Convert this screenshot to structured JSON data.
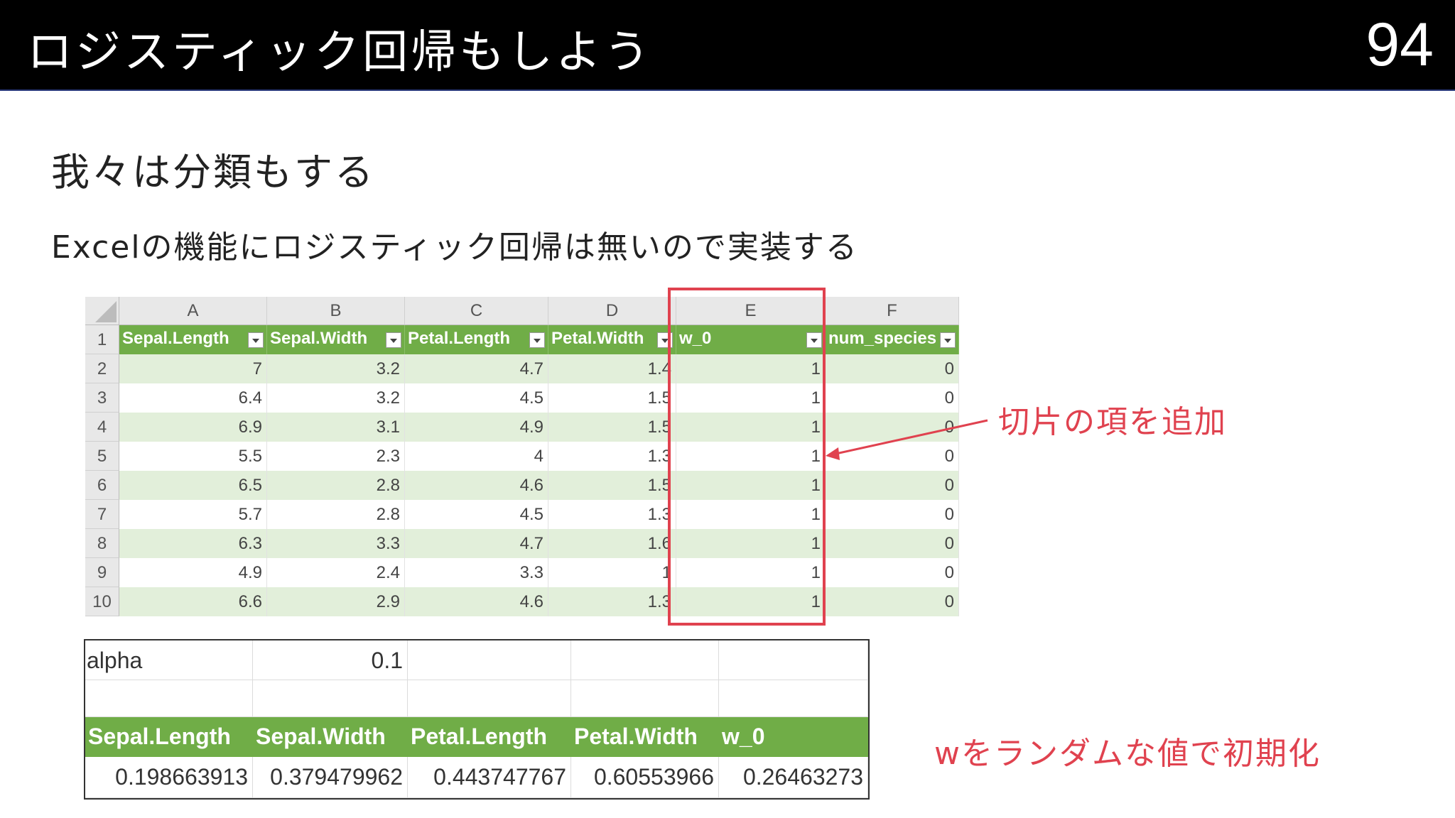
{
  "header": {
    "title": "ロジスティック回帰もしよう",
    "page_number": "94"
  },
  "subtitle": "我々は分類もする",
  "lead": "Excelの機能にロジスティック回帰は無いので実装する",
  "sheet": {
    "col_letters": [
      "A",
      "B",
      "C",
      "D",
      "E",
      "F"
    ],
    "row_numbers": [
      "1",
      "2",
      "3",
      "4",
      "5",
      "6",
      "7",
      "8",
      "9",
      "10"
    ],
    "headers": [
      "Sepal.Length",
      "Sepal.Width",
      "Petal.Length",
      "Petal.Width",
      "w_0",
      "num_species"
    ],
    "rows": [
      [
        "7",
        "3.2",
        "4.7",
        "1.4",
        "1",
        "0"
      ],
      [
        "6.4",
        "3.2",
        "4.5",
        "1.5",
        "1",
        "0"
      ],
      [
        "6.9",
        "3.1",
        "4.9",
        "1.5",
        "1",
        "0"
      ],
      [
        "5.5",
        "2.3",
        "4",
        "1.3",
        "1",
        "0"
      ],
      [
        "6.5",
        "2.8",
        "4.6",
        "1.5",
        "1",
        "0"
      ],
      [
        "5.7",
        "2.8",
        "4.5",
        "1.3",
        "1",
        "0"
      ],
      [
        "6.3",
        "3.3",
        "4.7",
        "1.6",
        "1",
        "0"
      ],
      [
        "4.9",
        "2.4",
        "3.3",
        "1",
        "1",
        "0"
      ],
      [
        "6.6",
        "2.9",
        "4.6",
        "1.3",
        "1",
        "0"
      ]
    ],
    "band_color": "#e2efda",
    "header_color": "#70ad47"
  },
  "annotations": {
    "intercept": "切片の項を追加",
    "random_init": "wをランダムな値で初期化",
    "color": "#e0424f"
  },
  "params": {
    "alpha_label": "alpha",
    "alpha_value": "0.1",
    "headers": [
      "Sepal.Length",
      "Sepal.Width",
      "Petal.Length",
      "Petal.Width",
      "w_0"
    ],
    "values": [
      "0.198663913",
      "0.379479962",
      "0.443747767",
      "0.60553966",
      "0.26463273"
    ]
  }
}
